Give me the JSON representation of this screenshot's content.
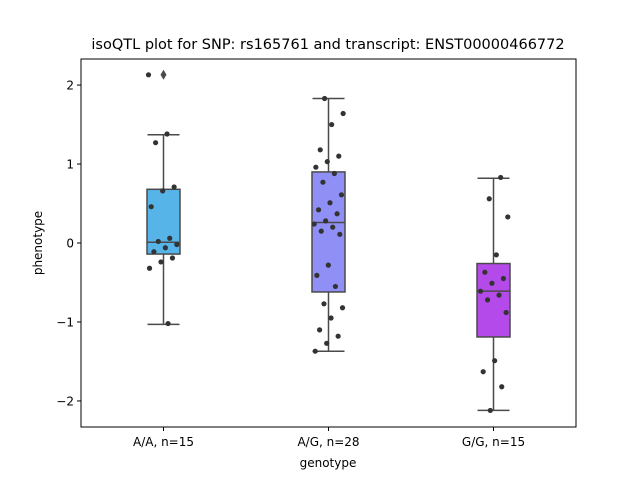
{
  "chart_data": {
    "type": "box",
    "title": "isoQTL plot for SNP: rs165761 and transcript: ENST00000466772",
    "xlabel": "genotype",
    "ylabel": "phenotype",
    "ylim": [
      -2.33,
      2.33
    ],
    "yticks": [
      -2,
      -1,
      0,
      1,
      2
    ],
    "ytick_labels": [
      "−2",
      "−1",
      "0",
      "1",
      "2"
    ],
    "grid": false,
    "categories": [
      "A/A, n=15",
      "A/G, n=28",
      "G/G, n=15"
    ],
    "colors": [
      "#56b4e9",
      "#8f8ff5",
      "#b54aeb"
    ],
    "boxes": [
      {
        "q1": -0.14,
        "median": 0.01,
        "q3": 0.68,
        "whisker_low": -1.03,
        "whisker_high": 1.37,
        "outliers": [
          2.13
        ]
      },
      {
        "q1": -0.62,
        "median": 0.26,
        "q3": 0.9,
        "whisker_low": -1.37,
        "whisker_high": 1.83,
        "outliers": []
      },
      {
        "q1": -1.19,
        "median": -0.61,
        "q3": -0.26,
        "whisker_low": -2.12,
        "whisker_high": 0.82,
        "outliers": []
      }
    ],
    "points": [
      [
        2.13,
        1.38,
        1.27,
        0.71,
        0.66,
        0.46,
        0.06,
        0.02,
        -0.02,
        -0.06,
        -0.11,
        -0.19,
        -0.24,
        -0.32,
        -1.02
      ],
      [
        1.83,
        1.64,
        1.5,
        1.18,
        1.1,
        1.03,
        0.96,
        0.88,
        0.77,
        0.61,
        0.51,
        0.42,
        0.37,
        0.28,
        0.24,
        0.2,
        0.15,
        0.11,
        -0.28,
        -0.41,
        -0.55,
        -0.77,
        -0.82,
        -0.95,
        -1.1,
        -1.18,
        -1.27,
        -1.37
      ],
      [
        0.83,
        0.56,
        0.33,
        -0.15,
        -0.37,
        -0.45,
        -0.51,
        -0.61,
        -0.66,
        -0.72,
        -0.88,
        -1.49,
        -1.63,
        -1.82,
        -2.12
      ]
    ]
  }
}
